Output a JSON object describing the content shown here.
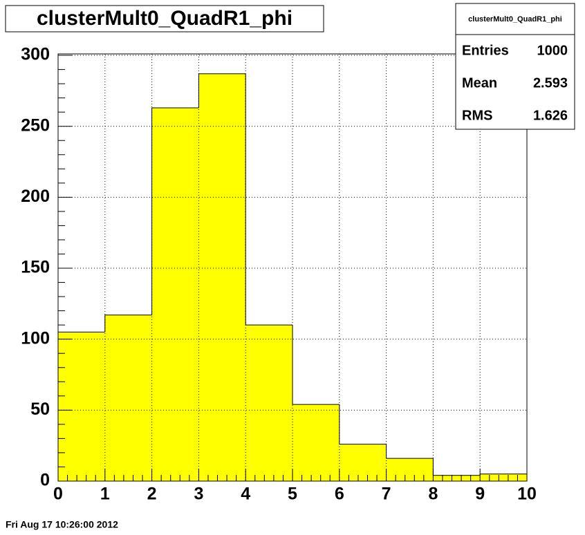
{
  "chart_data": {
    "type": "histogram",
    "title": "clusterMult0_QuadR1_phi",
    "bins": [
      0,
      1,
      2,
      3,
      4,
      5,
      6,
      7,
      8,
      9,
      10
    ],
    "counts": [
      105,
      117,
      263,
      287,
      110,
      54,
      26,
      16,
      4,
      5
    ],
    "color": "#ffff00",
    "xlim": [
      0,
      10
    ],
    "xticks": [
      0,
      1,
      2,
      3,
      4,
      5,
      6,
      7,
      8,
      9,
      10
    ],
    "ylim": [
      0,
      301
    ],
    "yticks": [
      0,
      50,
      100,
      150,
      200,
      250,
      300
    ],
    "grid": true,
    "stats": {
      "title": "clusterMult0_QuadR1_phi",
      "rows": [
        {
          "label": "Entries",
          "value": 1000
        },
        {
          "label": "Mean",
          "value": 2.593
        },
        {
          "label": "RMS",
          "value": 1.626
        }
      ]
    }
  },
  "footer": "Fri Aug 17 10:26:00 2012"
}
